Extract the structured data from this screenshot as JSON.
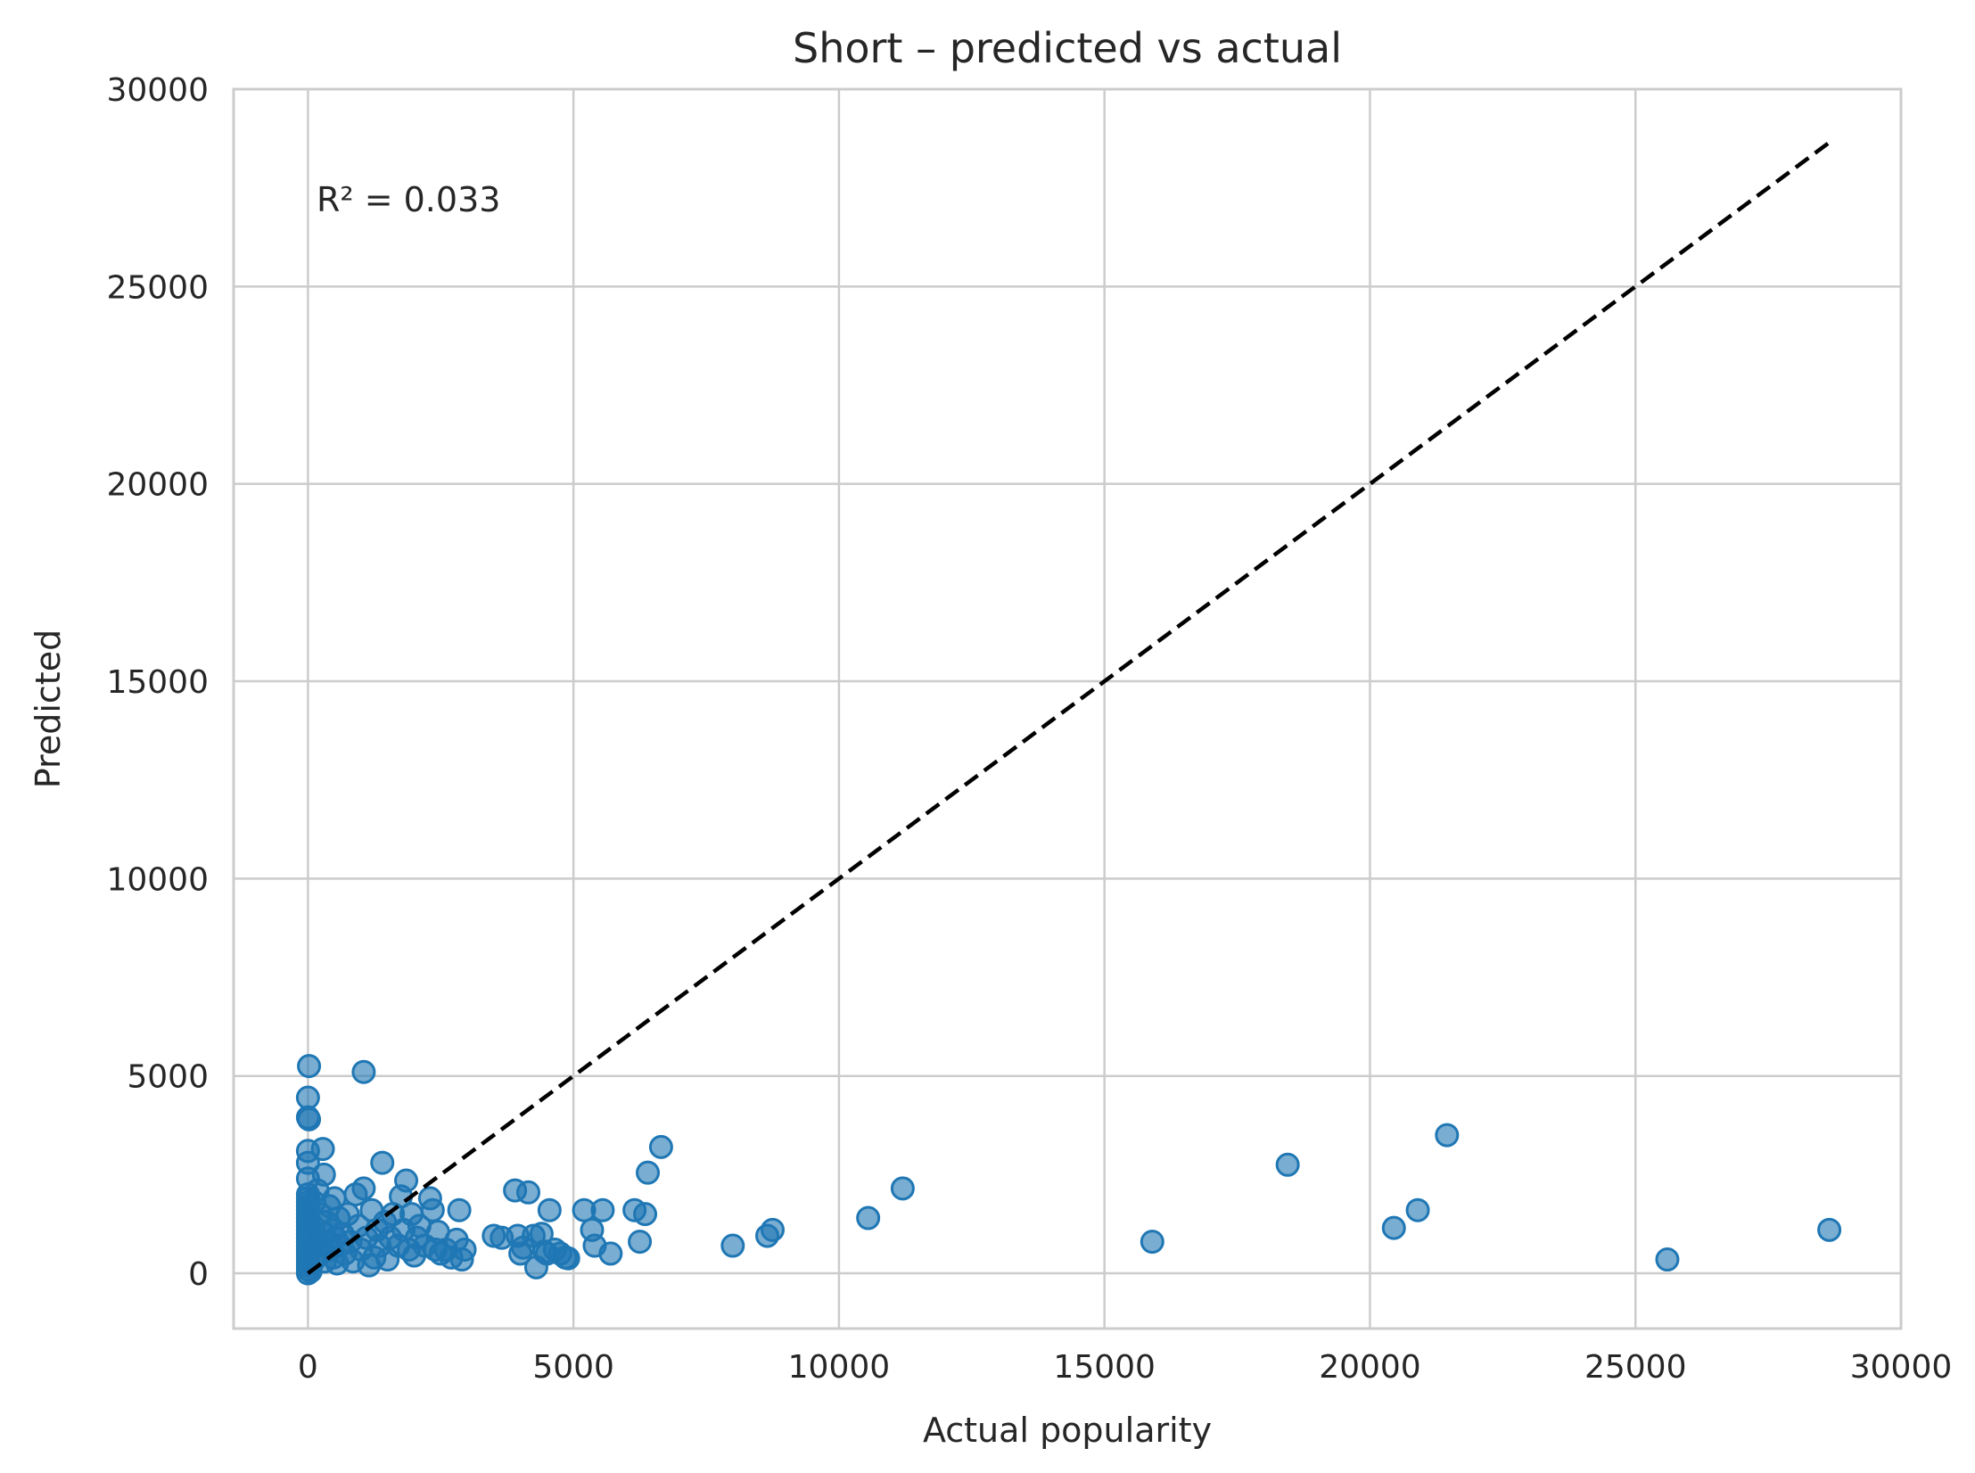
{
  "chart_data": {
    "type": "scatter",
    "title": "Short – predicted vs actual",
    "xlabel": "Actual popularity",
    "ylabel": "Predicted",
    "xlim": [
      -1400,
      30000
    ],
    "ylim": [
      -1400,
      30000
    ],
    "xticks": [
      0,
      5000,
      10000,
      15000,
      20000,
      25000,
      30000
    ],
    "yticks": [
      0,
      5000,
      10000,
      15000,
      20000,
      25000,
      30000
    ],
    "grid": true,
    "annotation": "R² = 0.033",
    "reference_line": {
      "x": [
        0,
        28650
      ],
      "y": [
        0,
        28650
      ],
      "style": "dashed",
      "color": "#000000"
    },
    "colors": {
      "points": "#1f77b4",
      "grid": "#cccccc",
      "frame": "#cccccc"
    },
    "series": [
      {
        "values": [
          [
            0,
            0
          ],
          [
            0,
            100
          ],
          [
            0,
            200
          ],
          [
            0,
            300
          ],
          [
            0,
            400
          ],
          [
            0,
            500
          ],
          [
            0,
            600
          ],
          [
            0,
            700
          ],
          [
            0,
            800
          ],
          [
            0,
            900
          ],
          [
            0,
            1000
          ],
          [
            0,
            1100
          ],
          [
            0,
            1200
          ],
          [
            0,
            1300
          ],
          [
            0,
            1400
          ],
          [
            0,
            1500
          ],
          [
            0,
            1600
          ],
          [
            0,
            1700
          ],
          [
            0,
            1800
          ],
          [
            0,
            1900
          ],
          [
            0,
            2000
          ],
          [
            0,
            2400
          ],
          [
            0,
            2800
          ],
          [
            0,
            3100
          ],
          [
            0,
            3950
          ],
          [
            0,
            4450
          ],
          [
            20,
            5250
          ],
          [
            20,
            3900
          ],
          [
            50,
            50
          ],
          [
            80,
            700
          ],
          [
            100,
            1200
          ],
          [
            100,
            300
          ],
          [
            120,
            1800
          ],
          [
            150,
            900
          ],
          [
            180,
            2100
          ],
          [
            200,
            500
          ],
          [
            220,
            1500
          ],
          [
            250,
            700
          ],
          [
            280,
            3150
          ],
          [
            300,
            1000
          ],
          [
            300,
            2500
          ],
          [
            320,
            300
          ],
          [
            350,
            1300
          ],
          [
            380,
            800
          ],
          [
            400,
            1700
          ],
          [
            420,
            600
          ],
          [
            450,
            1100
          ],
          [
            480,
            400
          ],
          [
            500,
            1900
          ],
          [
            520,
            900
          ],
          [
            550,
            250
          ],
          [
            580,
            1400
          ],
          [
            600,
            700
          ],
          [
            650,
            1000
          ],
          [
            700,
            500
          ],
          [
            750,
            1500
          ],
          [
            800,
            800
          ],
          [
            850,
            300
          ],
          [
            900,
            2000
          ],
          [
            950,
            1200
          ],
          [
            1000,
            600
          ],
          [
            1050,
            5100
          ],
          [
            1050,
            2150
          ],
          [
            1100,
            900
          ],
          [
            1150,
            200
          ],
          [
            1200,
            1600
          ],
          [
            1250,
            400
          ],
          [
            1300,
            1100
          ],
          [
            1350,
            700
          ],
          [
            1400,
            2800
          ],
          [
            1450,
            1300
          ],
          [
            1500,
            350
          ],
          [
            1550,
            900
          ],
          [
            1600,
            1500
          ],
          [
            1700,
            700
          ],
          [
            1750,
            1950
          ],
          [
            1800,
            1100
          ],
          [
            1850,
            2350
          ],
          [
            1900,
            600
          ],
          [
            1950,
            1500
          ],
          [
            2000,
            450
          ],
          [
            2050,
            900
          ],
          [
            2100,
            1200
          ],
          [
            2200,
            700
          ],
          [
            2300,
            1900
          ],
          [
            2350,
            1600
          ],
          [
            2400,
            600
          ],
          [
            2450,
            1050
          ],
          [
            2500,
            500
          ],
          [
            2600,
            600
          ],
          [
            2700,
            400
          ],
          [
            2800,
            850
          ],
          [
            2850,
            1600
          ],
          [
            2900,
            350
          ],
          [
            2950,
            600
          ],
          [
            3500,
            950
          ],
          [
            3650,
            900
          ],
          [
            3900,
            2100
          ],
          [
            3950,
            950
          ],
          [
            4000,
            500
          ],
          [
            4050,
            650
          ],
          [
            4150,
            2050
          ],
          [
            4250,
            950
          ],
          [
            4300,
            150
          ],
          [
            4400,
            1000
          ],
          [
            4450,
            550
          ],
          [
            4500,
            500
          ],
          [
            4550,
            1600
          ],
          [
            4650,
            600
          ],
          [
            4750,
            500
          ],
          [
            4850,
            400
          ],
          [
            4900,
            380
          ],
          [
            5200,
            1600
          ],
          [
            5350,
            1100
          ],
          [
            5400,
            700
          ],
          [
            5550,
            1600
          ],
          [
            5700,
            500
          ],
          [
            6150,
            1600
          ],
          [
            6250,
            800
          ],
          [
            6350,
            1500
          ],
          [
            6400,
            2550
          ],
          [
            6650,
            3200
          ],
          [
            8000,
            700
          ],
          [
            8650,
            950
          ],
          [
            8750,
            1100
          ],
          [
            10550,
            1400
          ],
          [
            11200,
            2150
          ],
          [
            15900,
            800
          ],
          [
            18450,
            2750
          ],
          [
            20450,
            1150
          ],
          [
            20900,
            1600
          ],
          [
            21450,
            3500
          ],
          [
            25600,
            350
          ],
          [
            28650,
            1100
          ]
        ]
      }
    ]
  }
}
